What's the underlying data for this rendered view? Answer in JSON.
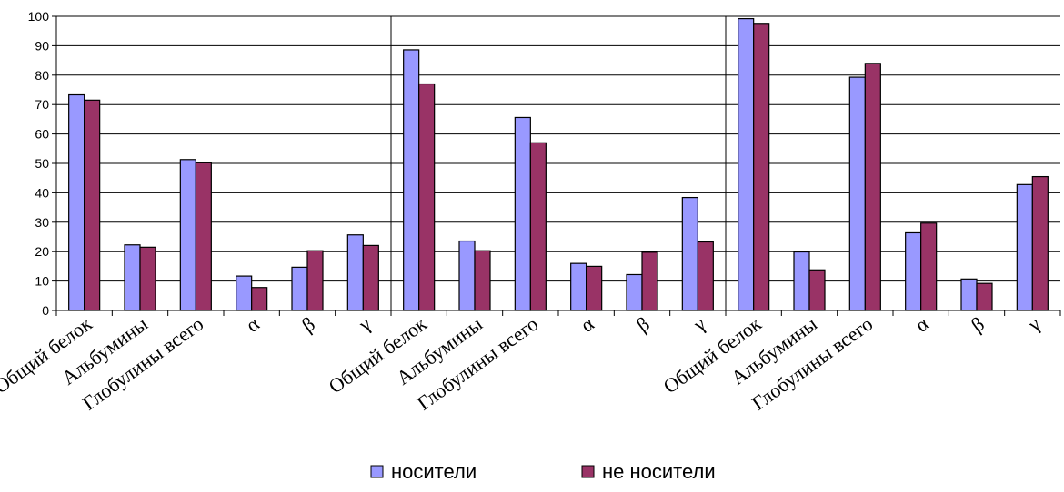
{
  "chart_data": {
    "type": "bar",
    "ylim": [
      0,
      100
    ],
    "yticks": [
      0,
      10,
      20,
      30,
      40,
      50,
      60,
      70,
      80,
      90,
      100
    ],
    "grid": true,
    "legend_position": "bottom",
    "series": [
      {
        "name": "носители",
        "color": "#9999ff"
      },
      {
        "name": "не носители",
        "color": "#993366"
      }
    ],
    "groups": [
      {
        "categories": [
          "Общий белок",
          "Альбумины",
          "Глобулины всего",
          "α",
          "β",
          "γ"
        ],
        "values": [
          [
            73.3,
            22.3,
            51.3,
            11.7,
            14.7,
            25.7
          ],
          [
            71.5,
            21.5,
            50.2,
            7.8,
            20.3,
            22.1
          ]
        ]
      },
      {
        "categories": [
          "Общий белок",
          "Альбумины",
          "Глобулины всего",
          "α",
          "β",
          "γ"
        ],
        "values": [
          [
            88.6,
            23.6,
            65.6,
            16.0,
            12.2,
            38.4
          ],
          [
            77.0,
            20.3,
            57.0,
            15.0,
            19.8,
            23.3
          ]
        ]
      },
      {
        "categories": [
          "Общий белок",
          "Альбумины",
          "Глобулины всего",
          "α",
          "β",
          "γ"
        ],
        "values": [
          [
            99.2,
            19.9,
            79.3,
            26.4,
            10.7,
            42.8
          ],
          [
            97.6,
            13.8,
            84.0,
            29.7,
            9.2,
            45.5
          ]
        ]
      }
    ]
  }
}
